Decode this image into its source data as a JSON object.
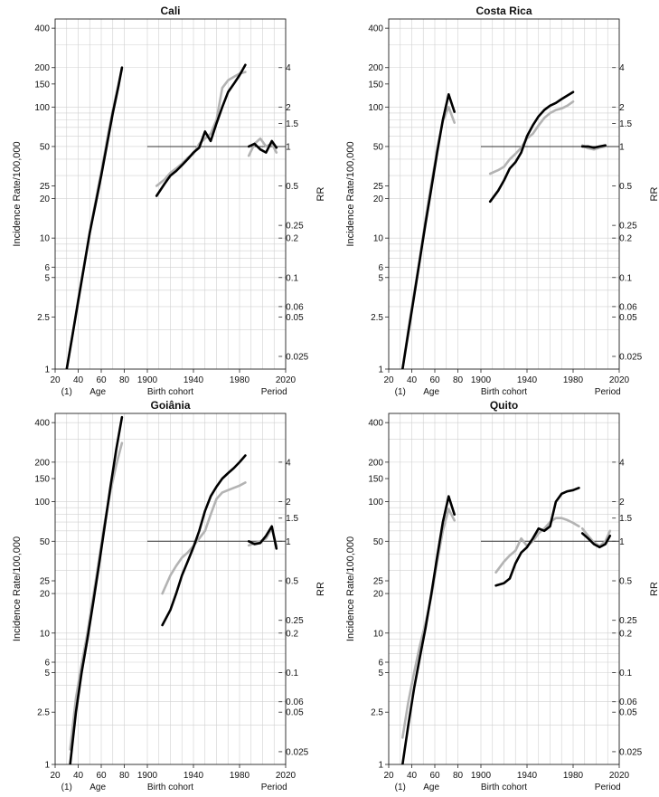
{
  "chart_data": [
    {
      "type": "line",
      "title": "Cali",
      "ylabel": "Incidence Rate/100,000",
      "ylabel_right": "RR",
      "y_scale": "log",
      "ylim": [
        1,
        470
      ],
      "rr_scale": "log",
      "x_ticks": [
        "20",
        "40",
        "60",
        "80",
        "1900",
        "1940",
        "1980",
        "2020"
      ],
      "x_labels": [
        "(1)",
        "Age",
        "Birth cohort",
        "Period"
      ],
      "y_ticks": [
        "1",
        "2.5",
        "5",
        "6",
        "10",
        "20",
        "25",
        "50",
        "100",
        "150",
        "200",
        "400"
      ],
      "rr_ticks": [
        "0.025",
        "0.05",
        "0.06",
        "0.1",
        "0.2",
        "0.25",
        "0.5",
        "1",
        "1.5",
        "2",
        "4"
      ],
      "age_series": [
        {
          "color": "#000000",
          "x": [
            30,
            35,
            40,
            45,
            50,
            55,
            60,
            65,
            70,
            75,
            78
          ],
          "y": [
            1.0,
            1.8,
            3.3,
            6,
            11,
            18,
            30,
            52,
            90,
            145,
            200
          ]
        },
        {
          "color": "#b3b3b3",
          "x": [
            30,
            35,
            40,
            45,
            50,
            55,
            60,
            65,
            70,
            75,
            78
          ],
          "y": [
            1.0,
            1.8,
            3.4,
            6.2,
            11,
            19,
            32,
            56,
            95,
            150,
            195
          ]
        }
      ],
      "cohort_series": [
        {
          "color": "#000000",
          "x": [
            1908,
            1915,
            1920,
            1925,
            1930,
            1935,
            1940,
            1945,
            1950,
            1955,
            1960,
            1965,
            1970,
            1975,
            1980,
            1985
          ],
          "y": [
            0.42,
            0.52,
            0.6,
            0.65,
            0.72,
            0.8,
            0.9,
            0.98,
            1.3,
            1.1,
            1.5,
            2.0,
            2.6,
            3.0,
            3.5,
            4.2
          ]
        },
        {
          "color": "#b3b3b3",
          "x": [
            1908,
            1915,
            1920,
            1925,
            1930,
            1935,
            1940,
            1945,
            1950,
            1955,
            1960,
            1965,
            1970,
            1975,
            1980,
            1985
          ],
          "y": [
            0.5,
            0.56,
            0.63,
            0.68,
            0.74,
            0.82,
            0.88,
            1.05,
            1.15,
            1.25,
            1.6,
            2.8,
            3.2,
            3.4,
            3.6,
            3.7
          ]
        }
      ],
      "period_series": [
        {
          "color": "#000000",
          "x": [
            1988,
            1993,
            1998,
            2003,
            2008,
            2012
          ],
          "y": [
            1.0,
            1.05,
            0.95,
            0.9,
            1.1,
            0.98
          ]
        },
        {
          "color": "#b3b3b3",
          "x": [
            1988,
            1993,
            1998,
            2003,
            2008,
            2012
          ],
          "y": [
            0.85,
            1.05,
            1.15,
            1.0,
            1.05,
            0.9
          ]
        }
      ]
    },
    {
      "type": "line",
      "title": "Costa Rica",
      "ylabel": "Incidence Rate/100,000",
      "ylabel_right": "RR",
      "y_scale": "log",
      "ylim": [
        1,
        470
      ],
      "rr_scale": "log",
      "x_ticks": [
        "20",
        "40",
        "60",
        "80",
        "1900",
        "1940",
        "1980",
        "2020"
      ],
      "x_labels": [
        "(1)",
        "Age",
        "Birth cohort",
        "Period"
      ],
      "y_ticks": [
        "1",
        "2.5",
        "5",
        "6",
        "10",
        "20",
        "25",
        "50",
        "100",
        "150",
        "200",
        "400"
      ],
      "rr_ticks": [
        "0.025",
        "0.05",
        "0.06",
        "0.1",
        "0.2",
        "0.25",
        "0.5",
        "1",
        "1.5",
        "2",
        "4"
      ],
      "age_series": [
        {
          "color": "#000000",
          "x": [
            32,
            37,
            42,
            47,
            52,
            57,
            62,
            67,
            72,
            77
          ],
          "y": [
            1.0,
            1.9,
            3.6,
            6.8,
            13,
            24,
            45,
            80,
            125,
            92
          ]
        },
        {
          "color": "#b3b3b3",
          "x": [
            32,
            37,
            42,
            47,
            52,
            57,
            62,
            67,
            72,
            77
          ],
          "y": [
            1.0,
            2.0,
            3.8,
            7,
            14,
            26,
            48,
            78,
            100,
            76
          ]
        }
      ],
      "cohort_series": [
        {
          "color": "#000000",
          "x": [
            1908,
            1915,
            1920,
            1925,
            1930,
            1935,
            1940,
            1945,
            1950,
            1955,
            1960,
            1965,
            1970,
            1975,
            1980
          ],
          "y": [
            0.38,
            0.46,
            0.55,
            0.68,
            0.76,
            0.9,
            1.2,
            1.45,
            1.7,
            1.9,
            2.05,
            2.15,
            2.3,
            2.45,
            2.6
          ]
        },
        {
          "color": "#b3b3b3",
          "x": [
            1908,
            1915,
            1920,
            1925,
            1930,
            1935,
            1940,
            1945,
            1950,
            1955,
            1960,
            1965,
            1970,
            1975,
            1980
          ],
          "y": [
            0.62,
            0.66,
            0.7,
            0.8,
            0.88,
            0.98,
            1.15,
            1.25,
            1.45,
            1.65,
            1.8,
            1.9,
            1.95,
            2.05,
            2.2
          ]
        }
      ],
      "period_series": [
        {
          "color": "#000000",
          "x": [
            1988,
            1993,
            1998,
            2003,
            2008
          ],
          "y": [
            1.0,
            1.0,
            0.98,
            1.0,
            1.02
          ]
        },
        {
          "color": "#b3b3b3",
          "x": [
            1988,
            1993,
            1998,
            2003,
            2008
          ],
          "y": [
            1.02,
            0.97,
            0.95,
            0.98,
            1.0
          ]
        }
      ]
    },
    {
      "type": "line",
      "title": "Goiânia",
      "ylabel": "Incidence Rate/100,000",
      "ylabel_right": "RR",
      "y_scale": "log",
      "ylim": [
        1,
        470
      ],
      "rr_scale": "log",
      "x_ticks": [
        "20",
        "40",
        "60",
        "80",
        "1900",
        "1940",
        "1980",
        "2020"
      ],
      "x_labels": [
        "(1)",
        "Age",
        "Birth cohort",
        "Period"
      ],
      "y_ticks": [
        "1",
        "2.5",
        "5",
        "6",
        "10",
        "20",
        "25",
        "50",
        "100",
        "150",
        "200",
        "400"
      ],
      "rr_ticks": [
        "0.025",
        "0.05",
        "0.06",
        "0.1",
        "0.2",
        "0.25",
        "0.5",
        "1",
        "1.5",
        "2",
        "4"
      ],
      "age_series": [
        {
          "color": "#000000",
          "x": [
            33,
            38,
            43,
            48,
            53,
            58,
            63,
            68,
            73,
            78
          ],
          "y": [
            1.0,
            2.5,
            5,
            9,
            17,
            33,
            65,
            130,
            250,
            440
          ]
        },
        {
          "color": "#b3b3b3",
          "x": [
            33,
            38,
            43,
            48,
            53,
            58,
            63,
            68,
            73,
            78
          ],
          "y": [
            1.3,
            3.2,
            5.8,
            10,
            19,
            36,
            70,
            120,
            190,
            280
          ]
        }
      ],
      "cohort_series": [
        {
          "color": "#000000",
          "x": [
            1913,
            1920,
            1925,
            1930,
            1935,
            1940,
            1945,
            1950,
            1955,
            1960,
            1965,
            1970,
            1975,
            1980,
            1985
          ],
          "y": [
            0.23,
            0.3,
            0.4,
            0.55,
            0.7,
            0.9,
            1.2,
            1.7,
            2.2,
            2.6,
            3.0,
            3.3,
            3.6,
            4.0,
            4.5
          ]
        },
        {
          "color": "#b3b3b3",
          "x": [
            1913,
            1920,
            1925,
            1930,
            1935,
            1940,
            1945,
            1950,
            1955,
            1960,
            1965,
            1970,
            1975,
            1980,
            1985
          ],
          "y": [
            0.4,
            0.55,
            0.65,
            0.75,
            0.82,
            0.92,
            1.05,
            1.2,
            1.6,
            2.1,
            2.35,
            2.45,
            2.55,
            2.65,
            2.8
          ]
        }
      ],
      "period_series": [
        {
          "color": "#000000",
          "x": [
            1988,
            1993,
            1998,
            2003,
            2008,
            2012
          ],
          "y": [
            1.0,
            0.95,
            0.97,
            1.1,
            1.3,
            0.88
          ]
        },
        {
          "color": "#b3b3b3",
          "x": [
            1988,
            1993,
            1998,
            2003,
            2008,
            2012
          ],
          "y": [
            0.93,
            0.97,
            1.0,
            1.05,
            1.25,
            0.92
          ]
        }
      ]
    },
    {
      "type": "line",
      "title": "Quito",
      "ylabel": "Incidence Rate/100,000",
      "ylabel_right": "RR",
      "y_scale": "log",
      "ylim": [
        1,
        470
      ],
      "rr_scale": "log",
      "x_ticks": [
        "20",
        "40",
        "60",
        "80",
        "1900",
        "1940",
        "1980",
        "2020"
      ],
      "x_labels": [
        "(1)",
        "Age",
        "Birth cohort",
        "Period"
      ],
      "y_ticks": [
        "1",
        "2.5",
        "5",
        "6",
        "10",
        "20",
        "25",
        "50",
        "100",
        "150",
        "200",
        "400"
      ],
      "rr_ticks": [
        "0.025",
        "0.05",
        "0.06",
        "0.1",
        "0.2",
        "0.25",
        "0.5",
        "1",
        "1.5",
        "2",
        "4"
      ],
      "age_series": [
        {
          "color": "#000000",
          "x": [
            32,
            37,
            42,
            47,
            52,
            57,
            62,
            67,
            72,
            77
          ],
          "y": [
            1.0,
            2.0,
            3.8,
            6.5,
            11,
            20,
            38,
            70,
            110,
            80
          ]
        },
        {
          "color": "#b3b3b3",
          "x": [
            32,
            37,
            42,
            47,
            52,
            57,
            62,
            67,
            72,
            77
          ],
          "y": [
            1.6,
            3.0,
            5,
            8,
            12,
            19,
            35,
            60,
            88,
            72
          ]
        }
      ],
      "cohort_series": [
        {
          "color": "#000000",
          "x": [
            1913,
            1920,
            1925,
            1930,
            1935,
            1940,
            1945,
            1950,
            1955,
            1960,
            1965,
            1970,
            1975,
            1980,
            1985
          ],
          "y": [
            0.46,
            0.48,
            0.52,
            0.68,
            0.82,
            0.9,
            1.05,
            1.25,
            1.2,
            1.3,
            2.0,
            2.3,
            2.4,
            2.45,
            2.55
          ]
        },
        {
          "color": "#b3b3b3",
          "x": [
            1913,
            1920,
            1925,
            1930,
            1935,
            1940,
            1945,
            1950,
            1955,
            1960,
            1965,
            1970,
            1975,
            1980,
            1985
          ],
          "y": [
            0.58,
            0.7,
            0.78,
            0.85,
            1.05,
            0.92,
            1.0,
            1.15,
            1.25,
            1.4,
            1.5,
            1.5,
            1.45,
            1.38,
            1.3
          ]
        }
      ],
      "period_series": [
        {
          "color": "#000000",
          "x": [
            1988,
            1993,
            1998,
            2003,
            2008,
            2012
          ],
          "y": [
            1.15,
            1.05,
            0.95,
            0.9,
            0.95,
            1.1
          ]
        },
        {
          "color": "#b3b3b3",
          "x": [
            1988,
            1993,
            1998,
            2003,
            2008,
            2012
          ],
          "y": [
            1.25,
            1.1,
            0.98,
            0.92,
            1.0,
            1.2
          ]
        }
      ]
    }
  ]
}
